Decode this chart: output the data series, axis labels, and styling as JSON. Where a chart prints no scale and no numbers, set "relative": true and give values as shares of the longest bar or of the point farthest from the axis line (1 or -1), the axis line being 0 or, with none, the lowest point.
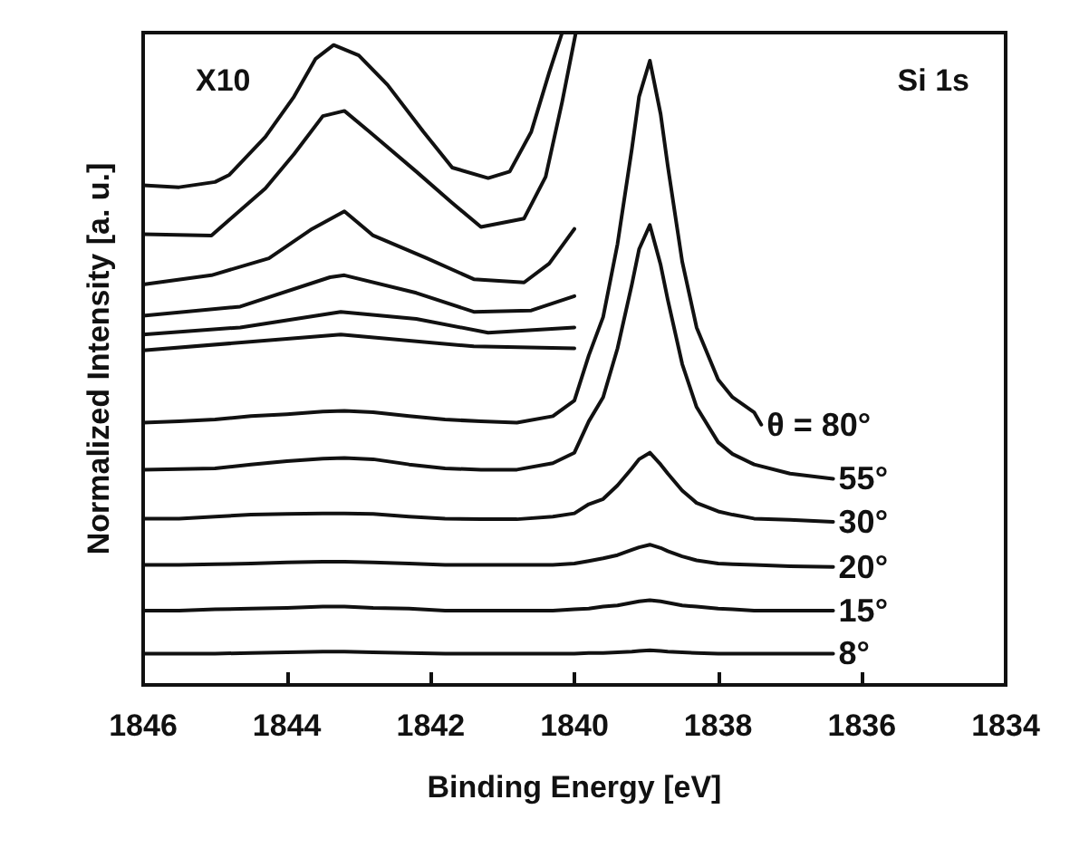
{
  "chart_data": {
    "type": "line",
    "relative": true,
    "xlabel": "Binding Energy [eV]",
    "ylabel": "Normalized Intensity [a. u.]",
    "annotations": [
      "X10",
      "Si 1s"
    ],
    "xlim": [
      1846,
      1834
    ],
    "xticks": [
      1846,
      1844,
      1842,
      1840,
      1838,
      1836,
      1834
    ],
    "legend": false,
    "grid": false,
    "marker": "none",
    "line_style": "solid",
    "series": [
      {
        "name": "θ = 80°",
        "color": "#111111",
        "x": [
          1846,
          1845.5,
          1845,
          1844.5,
          1844,
          1843.5,
          1843.2,
          1842.8,
          1842.3,
          1841.8,
          1841.3,
          1840.8,
          1840.3,
          1840,
          1839.8,
          1839.6,
          1839.4,
          1839.2,
          1839.1,
          1838.95,
          1838.8,
          1838.7,
          1838.5,
          1838.3,
          1838,
          1837.8,
          1837.5,
          1837.4
        ],
        "values": [
          0.402,
          0.404,
          0.407,
          0.412,
          0.415,
          0.419,
          0.42,
          0.418,
          0.412,
          0.407,
          0.404,
          0.402,
          0.412,
          0.436,
          0.505,
          0.564,
          0.676,
          0.822,
          0.902,
          0.957,
          0.875,
          0.795,
          0.649,
          0.548,
          0.468,
          0.441,
          0.418,
          0.399
        ]
      },
      {
        "name": "55°",
        "color": "#111111",
        "x": [
          1846,
          1845.5,
          1845,
          1844.5,
          1844,
          1843.5,
          1843.2,
          1842.8,
          1842.3,
          1841.8,
          1841.3,
          1840.8,
          1840.3,
          1840,
          1839.8,
          1839.6,
          1839.4,
          1839.2,
          1839.1,
          1838.95,
          1838.8,
          1838.7,
          1838.5,
          1838.3,
          1838,
          1837.8,
          1837.5,
          1837,
          1836.4
        ],
        "values": [
          0.33,
          0.331,
          0.332,
          0.338,
          0.343,
          0.347,
          0.348,
          0.346,
          0.338,
          0.332,
          0.33,
          0.33,
          0.34,
          0.356,
          0.404,
          0.441,
          0.516,
          0.614,
          0.668,
          0.705,
          0.644,
          0.59,
          0.492,
          0.426,
          0.372,
          0.354,
          0.338,
          0.324,
          0.316
        ]
      },
      {
        "name": "30°",
        "color": "#111111",
        "x": [
          1846,
          1845.5,
          1845,
          1844.5,
          1844,
          1843.5,
          1843.2,
          1842.8,
          1842.3,
          1841.8,
          1841.3,
          1840.8,
          1840.3,
          1840,
          1839.8,
          1839.6,
          1839.4,
          1839.2,
          1839.1,
          1838.95,
          1838.8,
          1838.7,
          1838.5,
          1838.3,
          1838,
          1837.8,
          1837.5,
          1837,
          1836.4
        ],
        "values": [
          0.255,
          0.255,
          0.258,
          0.261,
          0.262,
          0.263,
          0.263,
          0.262,
          0.258,
          0.255,
          0.254,
          0.254,
          0.258,
          0.263,
          0.277,
          0.285,
          0.306,
          0.332,
          0.346,
          0.356,
          0.338,
          0.324,
          0.298,
          0.279,
          0.266,
          0.261,
          0.255,
          0.253,
          0.25
        ]
      },
      {
        "name": "20°",
        "color": "#111111",
        "x": [
          1846,
          1845.5,
          1845,
          1844.5,
          1844,
          1843.5,
          1843.2,
          1842.8,
          1842.3,
          1841.8,
          1841.3,
          1840.8,
          1840.3,
          1840,
          1839.8,
          1839.6,
          1839.4,
          1839.2,
          1839.1,
          1838.95,
          1838.8,
          1838.7,
          1838.5,
          1838.3,
          1838,
          1837.8,
          1837.5,
          1837,
          1836.4
        ],
        "values": [
          0.184,
          0.184,
          0.185,
          0.186,
          0.188,
          0.189,
          0.189,
          0.188,
          0.186,
          0.184,
          0.184,
          0.184,
          0.184,
          0.186,
          0.19,
          0.194,
          0.199,
          0.207,
          0.211,
          0.215,
          0.21,
          0.205,
          0.197,
          0.191,
          0.186,
          0.185,
          0.184,
          0.182,
          0.181
        ]
      },
      {
        "name": "15°",
        "color": "#111111",
        "x": [
          1846,
          1845.5,
          1845,
          1844.5,
          1844,
          1843.5,
          1843.2,
          1842.8,
          1842.3,
          1841.8,
          1841.3,
          1840.8,
          1840.3,
          1840,
          1839.8,
          1839.6,
          1839.4,
          1839.2,
          1839.1,
          1838.95,
          1838.8,
          1838.7,
          1838.5,
          1838.3,
          1838,
          1837.8,
          1837.5,
          1837,
          1836.4
        ],
        "values": [
          0.114,
          0.114,
          0.116,
          0.117,
          0.118,
          0.12,
          0.12,
          0.118,
          0.117,
          0.114,
          0.114,
          0.114,
          0.114,
          0.116,
          0.117,
          0.12,
          0.122,
          0.126,
          0.128,
          0.13,
          0.128,
          0.126,
          0.122,
          0.12,
          0.117,
          0.116,
          0.114,
          0.114,
          0.114
        ]
      },
      {
        "name": "8°",
        "color": "#111111",
        "x": [
          1846,
          1845.5,
          1845,
          1844.5,
          1844,
          1843.5,
          1843.2,
          1842.8,
          1842.3,
          1841.8,
          1841.3,
          1840.8,
          1840.3,
          1840,
          1839.8,
          1839.6,
          1839.4,
          1839.2,
          1839.1,
          1838.95,
          1838.8,
          1838.7,
          1838.5,
          1838.3,
          1838,
          1837.8,
          1837.5,
          1837,
          1836.4
        ],
        "values": [
          0.048,
          0.048,
          0.048,
          0.049,
          0.05,
          0.051,
          0.051,
          0.05,
          0.049,
          0.048,
          0.048,
          0.048,
          0.048,
          0.048,
          0.049,
          0.049,
          0.05,
          0.051,
          0.052,
          0.053,
          0.052,
          0.051,
          0.05,
          0.049,
          0.048,
          0.048,
          0.048,
          0.048,
          0.048
        ]
      },
      {
        "color": "#111111",
        "x": [
          1846,
          1845.5,
          1845,
          1844.8,
          1844.3,
          1843.9,
          1843.6,
          1843.35,
          1843,
          1842.6,
          1842.1,
          1841.7,
          1841.2,
          1840.9,
          1840.6,
          1840.35,
          1840.17
        ],
        "values": [
          0.766,
          0.763,
          0.771,
          0.782,
          0.84,
          0.902,
          0.96,
          0.981,
          0.965,
          0.92,
          0.848,
          0.793,
          0.777,
          0.787,
          0.848,
          0.939,
          1.0
        ]
      },
      {
        "color": "#111111",
        "x": [
          1846,
          1845.05,
          1844.3,
          1843.9,
          1843.5,
          1843.2,
          1842.85,
          1842.2,
          1841.7,
          1841.3,
          1840.7,
          1840.4,
          1840.17,
          1839.98
        ],
        "values": [
          0.691,
          0.689,
          0.761,
          0.814,
          0.872,
          0.88,
          0.848,
          0.787,
          0.739,
          0.702,
          0.715,
          0.779,
          0.894,
          1.0
        ]
      },
      {
        "color": "#111111",
        "x": [
          1846,
          1845.05,
          1844.25,
          1843.65,
          1843.2,
          1842.8,
          1842.05,
          1841.4,
          1840.7,
          1840.35,
          1840.0
        ],
        "values": [
          0.614,
          0.628,
          0.654,
          0.699,
          0.726,
          0.689,
          0.654,
          0.622,
          0.617,
          0.646,
          0.699
        ]
      },
      {
        "color": "#111111",
        "x": [
          1846,
          1844.65,
          1843.4,
          1843.2,
          1842.2,
          1841.4,
          1840.6,
          1840.0
        ],
        "values": [
          0.566,
          0.58,
          0.625,
          0.628,
          0.601,
          0.572,
          0.574,
          0.596
        ]
      },
      {
        "color": "#111111",
        "x": [
          1846,
          1844.65,
          1843.25,
          1842.2,
          1841.2,
          1840.0
        ],
        "values": [
          0.537,
          0.548,
          0.572,
          0.561,
          0.54,
          0.548
        ]
      },
      {
        "color": "#111111",
        "x": [
          1846,
          1843.25,
          1841.4,
          1840.0
        ],
        "values": [
          0.513,
          0.537,
          0.519,
          0.516
        ]
      }
    ]
  }
}
